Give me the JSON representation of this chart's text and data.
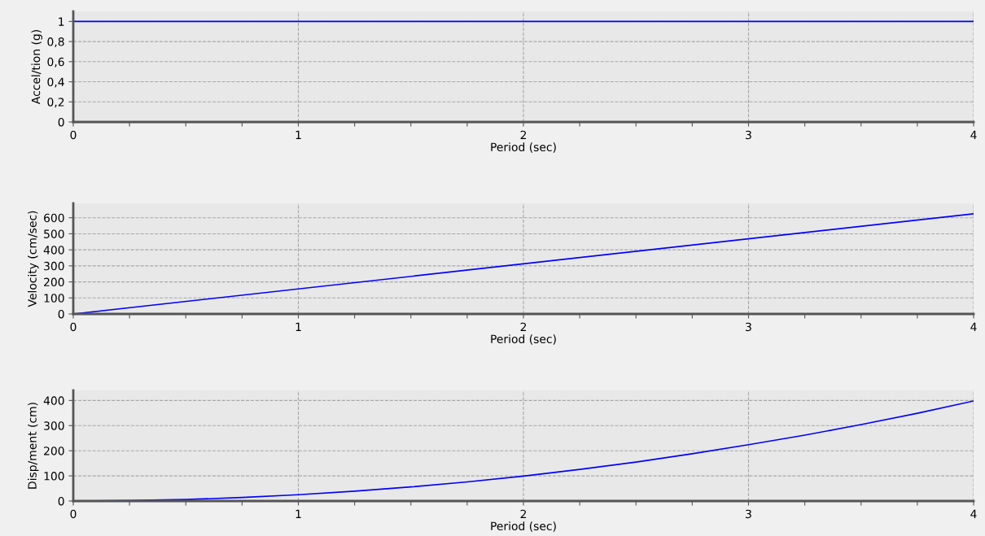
{
  "chart_data": [
    {
      "type": "line",
      "xlabel": "Period (sec)",
      "ylabel": "Accel/tion (g)",
      "x": [
        0,
        4
      ],
      "series": [
        {
          "color": "#0000ff",
          "values": [
            1,
            1
          ]
        }
      ],
      "xlim": [
        0,
        4
      ],
      "ylim": [
        0,
        1.1
      ],
      "xticks": [
        0,
        {
          "value": 0.25,
          "label": null
        },
        {
          "value": 0.5,
          "label": null
        },
        {
          "value": 0.75,
          "label": null
        },
        1,
        {
          "value": 1.25,
          "label": null
        },
        {
          "value": 1.5,
          "label": null
        },
        {
          "value": 1.75,
          "label": null
        },
        2,
        {
          "value": 2.25,
          "label": null
        },
        {
          "value": 2.5,
          "label": null
        },
        {
          "value": 2.75,
          "label": null
        },
        3,
        {
          "value": 3.25,
          "label": null
        },
        {
          "value": 3.5,
          "label": null
        },
        {
          "value": 3.75,
          "label": null
        },
        4
      ],
      "yticks": [
        0,
        {
          "value": 0.2,
          "label": "0,2"
        },
        {
          "value": 0.4,
          "label": "0,4"
        },
        {
          "value": 0.6,
          "label": "0,6"
        },
        {
          "value": 0.8,
          "label": "0,8"
        },
        1
      ],
      "grid": true,
      "legend": false,
      "marker": "none",
      "line_style": "solid"
    },
    {
      "type": "line",
      "xlabel": "Period (sec)",
      "ylabel": "Velocity (cm/sec)",
      "x": [
        0,
        4
      ],
      "series": [
        {
          "color": "#0000ff",
          "values": [
            0,
            625
          ]
        }
      ],
      "xlim": [
        0,
        4
      ],
      "ylim": [
        0,
        690
      ],
      "xticks": [
        0,
        {
          "value": 0.25,
          "label": null
        },
        {
          "value": 0.5,
          "label": null
        },
        {
          "value": 0.75,
          "label": null
        },
        1,
        {
          "value": 1.25,
          "label": null
        },
        {
          "value": 1.5,
          "label": null
        },
        {
          "value": 1.75,
          "label": null
        },
        2,
        {
          "value": 2.25,
          "label": null
        },
        {
          "value": 2.5,
          "label": null
        },
        {
          "value": 2.75,
          "label": null
        },
        3,
        {
          "value": 3.25,
          "label": null
        },
        {
          "value": 3.5,
          "label": null
        },
        {
          "value": 3.75,
          "label": null
        },
        4
      ],
      "yticks": [
        0,
        100,
        200,
        300,
        400,
        500,
        600
      ],
      "grid": true,
      "legend": false,
      "marker": "none",
      "line_style": "solid"
    },
    {
      "type": "line",
      "xlabel": "Period (sec)",
      "ylabel": "Disp/ment (cm)",
      "x": [
        0,
        0.25,
        0.5,
        0.75,
        1,
        1.25,
        1.5,
        1.75,
        2,
        2.25,
        2.5,
        2.75,
        3,
        3.25,
        3.5,
        3.75,
        4
      ],
      "series": [
        {
          "color": "#0000ff",
          "values": [
            0,
            2,
            6,
            14,
            25,
            39,
            56,
            76,
            99,
            126,
            155,
            188,
            224,
            262,
            304,
            349,
            398
          ]
        }
      ],
      "xlim": [
        0,
        4
      ],
      "ylim": [
        0,
        440
      ],
      "xticks": [
        0,
        {
          "value": 0.25,
          "label": null
        },
        {
          "value": 0.5,
          "label": null
        },
        {
          "value": 0.75,
          "label": null
        },
        1,
        {
          "value": 1.25,
          "label": null
        },
        {
          "value": 1.5,
          "label": null
        },
        {
          "value": 1.75,
          "label": null
        },
        2,
        {
          "value": 2.25,
          "label": null
        },
        {
          "value": 2.5,
          "label": null
        },
        {
          "value": 2.75,
          "label": null
        },
        3,
        {
          "value": 3.25,
          "label": null
        },
        {
          "value": 3.5,
          "label": null
        },
        {
          "value": 3.75,
          "label": null
        },
        4
      ],
      "yticks": [
        0,
        100,
        200,
        300,
        400
      ],
      "grid": true,
      "legend": false,
      "marker": "none",
      "line_style": "solid"
    }
  ]
}
